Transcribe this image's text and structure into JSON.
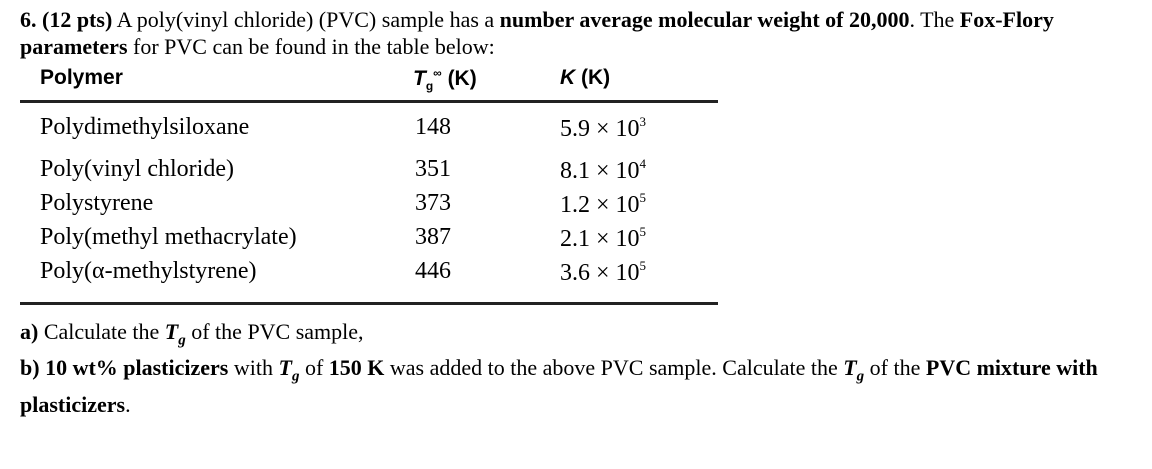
{
  "question": {
    "number": "6.",
    "points": "(12 pts)",
    "intro_1": " A poly(vinyl chloride) (PVC) sample has a ",
    "bold_1": "number average molecular weight of 20,000",
    "intro_2": ". The ",
    "bold_2": "Fox-Flory parameters",
    "intro_3": " for PVC can be found in the table below:"
  },
  "table": {
    "headers": {
      "polymer": "Polymer",
      "tg_symbol": "T",
      "tg_sub": "g",
      "tg_sup": "∞",
      "tg_unit": " (K)",
      "k_symbol": "K",
      "k_unit": " (K)"
    },
    "rows": [
      {
        "polymer": "Polydimethylsiloxane",
        "tg": "148",
        "k_base": "5.9 × 10",
        "k_exp": "3"
      },
      {
        "polymer": "Poly(vinyl chloride)",
        "tg": "351",
        "k_base": "8.1 × 10",
        "k_exp": "4"
      },
      {
        "polymer": "Polystyrene",
        "tg": "373",
        "k_base": "1.2 × 10",
        "k_exp": "5"
      },
      {
        "polymer": "Poly(methyl methacrylate)",
        "tg": "387",
        "k_base": "2.1 × 10",
        "k_exp": "5"
      },
      {
        "polymer": "Poly(α-methylstyrene)",
        "tg": "446",
        "k_base": "3.6 × 10",
        "k_exp": "5"
      }
    ]
  },
  "parts": {
    "a_label": "a)",
    "a_text_1": " Calculate the ",
    "a_sym": "T",
    "a_sub": "g",
    "a_text_2": " of the PVC sample,",
    "b_label": "b)",
    "b_bold_1": "10 wt% plasticizers",
    "b_text_1": " with ",
    "b_sym": "T",
    "b_sub": "g",
    "b_text_2": " of ",
    "b_bold_2": "150 K",
    "b_text_3": " was added to the above PVC sample. Calculate the ",
    "b_sym2": "T",
    "b_sub2": "g",
    "b_text_4": " of the ",
    "b_bold_3": "PVC mixture with plasticizers",
    "b_text_5": "."
  }
}
